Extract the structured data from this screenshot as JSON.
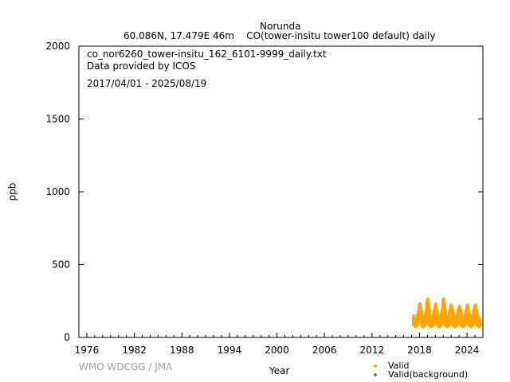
{
  "chart_data": {
    "type": "scatter",
    "title": "Norunda",
    "subtitle": "60.086N, 17.479E 46m    CO(tower-insitu tower100 default) daily",
    "info": [
      "co_nor6260_tower-insitu_162_6101-9999_daily.txt",
      "Data provided by ICOS",
      "2017/04/01 - 2025/08/19"
    ],
    "xlabel": "Year",
    "ylabel": "ppb",
    "xlim": [
      1975,
      2026
    ],
    "ylim": [
      0,
      2000
    ],
    "xticks": [
      1976,
      1982,
      1988,
      1994,
      2000,
      2006,
      2012,
      2018,
      2024
    ],
    "yticks": [
      0,
      500,
      1000,
      1500,
      2000
    ],
    "grid": false,
    "legend_placement": "bottom-right",
    "series": [
      {
        "name": "Valid",
        "color": "#ffa500",
        "monthly_range": {
          "start": "2017-04",
          "low": [
            85,
            80,
            75,
            75,
            80,
            90,
            100,
            105,
            110,
            110,
            105,
            95,
            85,
            80,
            75,
            75,
            80,
            90,
            100,
            105,
            110,
            110,
            105,
            95,
            85,
            80,
            75,
            75,
            80,
            90,
            100,
            105,
            110,
            110,
            105,
            95,
            85,
            80,
            75,
            75,
            80,
            90,
            100,
            105,
            110,
            110,
            105,
            95,
            85,
            80,
            75,
            75,
            80,
            90,
            100,
            105,
            110,
            110,
            105,
            95,
            85,
            80,
            75,
            75,
            80,
            90,
            100,
            105,
            110,
            110,
            105,
            95,
            85,
            80,
            75,
            75,
            80,
            90,
            100,
            105,
            110,
            110,
            105,
            95,
            85,
            80,
            75,
            75,
            80,
            90,
            100,
            105,
            110,
            110,
            105,
            95,
            85,
            80,
            75,
            75,
            80
          ],
          "high": [
            150,
            130,
            120,
            120,
            125,
            140,
            160,
            180,
            200,
            230,
            215,
            190,
            160,
            140,
            125,
            120,
            130,
            150,
            170,
            195,
            250,
            265,
            230,
            200,
            160,
            140,
            125,
            125,
            130,
            150,
            170,
            190,
            210,
            230,
            215,
            190,
            160,
            140,
            125,
            120,
            130,
            150,
            170,
            190,
            220,
            265,
            230,
            200,
            160,
            140,
            125,
            120,
            130,
            150,
            175,
            200,
            225,
            220,
            205,
            185,
            155,
            140,
            125,
            120,
            130,
            150,
            165,
            185,
            205,
            215,
            200,
            185,
            155,
            140,
            125,
            120,
            130,
            150,
            165,
            185,
            200,
            225,
            210,
            190,
            160,
            140,
            125,
            120,
            130,
            150,
            165,
            185,
            210,
            225,
            200,
            185,
            160,
            140,
            125,
            120,
            130
          ]
        }
      },
      {
        "name": "Valid(background)",
        "color": "#2e8b57",
        "monthly_range": null
      }
    ]
  },
  "watermark": "WMO WDCGG / JMA"
}
